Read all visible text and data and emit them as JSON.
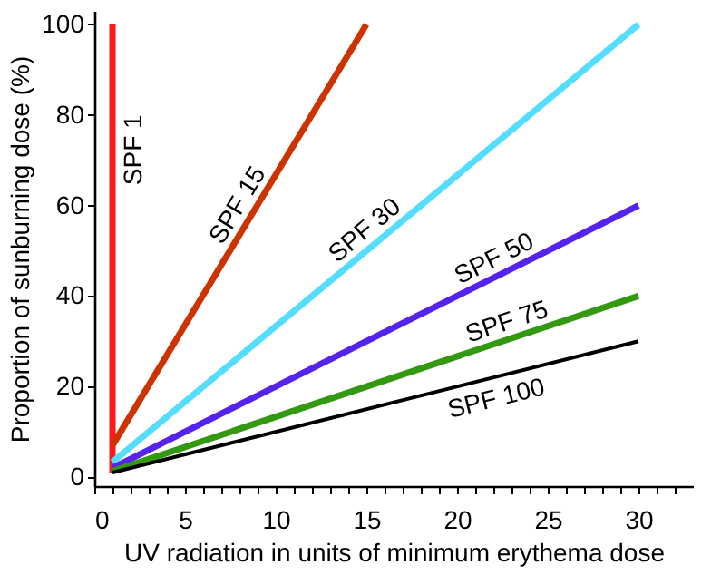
{
  "chart_data": {
    "type": "line",
    "xlabel": "UV radiation in units of minimum erythema dose",
    "ylabel": "Proportion of sunburning dose (%)",
    "xlim": [
      0,
      33
    ],
    "ylim": [
      -2,
      103
    ],
    "xticks": [
      0,
      {
        "value": 1,
        "label": null
      },
      {
        "value": 2,
        "label": null
      },
      {
        "value": 3,
        "label": null
      },
      {
        "value": 4,
        "label": null
      },
      5,
      {
        "value": 6,
        "label": null
      },
      {
        "value": 7,
        "label": null
      },
      {
        "value": 8,
        "label": null
      },
      {
        "value": 9,
        "label": null
      },
      10,
      {
        "value": 11,
        "label": null
      },
      {
        "value": 12,
        "label": null
      },
      {
        "value": 13,
        "label": null
      },
      {
        "value": 14,
        "label": null
      },
      15,
      {
        "value": 16,
        "label": null
      },
      {
        "value": 17,
        "label": null
      },
      {
        "value": 18,
        "label": null
      },
      {
        "value": 19,
        "label": null
      },
      20,
      {
        "value": 21,
        "label": null
      },
      {
        "value": 22,
        "label": null
      },
      {
        "value": 23,
        "label": null
      },
      {
        "value": 24,
        "label": null
      },
      25,
      {
        "value": 26,
        "label": null
      },
      {
        "value": 27,
        "label": null
      },
      {
        "value": 28,
        "label": null
      },
      {
        "value": 29,
        "label": null
      },
      30,
      {
        "value": 31,
        "label": null
      },
      {
        "value": 32,
        "label": null
      }
    ],
    "yticks": [
      0,
      20,
      40,
      60,
      80,
      100
    ],
    "grid": false,
    "legend": false,
    "line_style": "solid",
    "marker": "none",
    "series": [
      {
        "name": "SPF 1",
        "color": "#ff1a1a",
        "x": [
          1,
          1
        ],
        "values": [
          1,
          100
        ]
      },
      {
        "name": "SPF 15",
        "color": "#cc3300",
        "x": [
          1,
          15
        ],
        "values": [
          7,
          100
        ]
      },
      {
        "name": "SPF 30",
        "color": "#55ddff",
        "x": [
          1,
          30
        ],
        "values": [
          3.3,
          100
        ]
      },
      {
        "name": "SPF 50",
        "color": "#5522ee",
        "x": [
          1,
          30
        ],
        "values": [
          2,
          60
        ]
      },
      {
        "name": "SPF 75",
        "color": "#339911",
        "x": [
          1,
          30
        ],
        "values": [
          1.3,
          40
        ]
      },
      {
        "name": "SPF 100",
        "color": "#000000",
        "x": [
          1,
          30
        ],
        "values": [
          1,
          30
        ]
      }
    ]
  }
}
